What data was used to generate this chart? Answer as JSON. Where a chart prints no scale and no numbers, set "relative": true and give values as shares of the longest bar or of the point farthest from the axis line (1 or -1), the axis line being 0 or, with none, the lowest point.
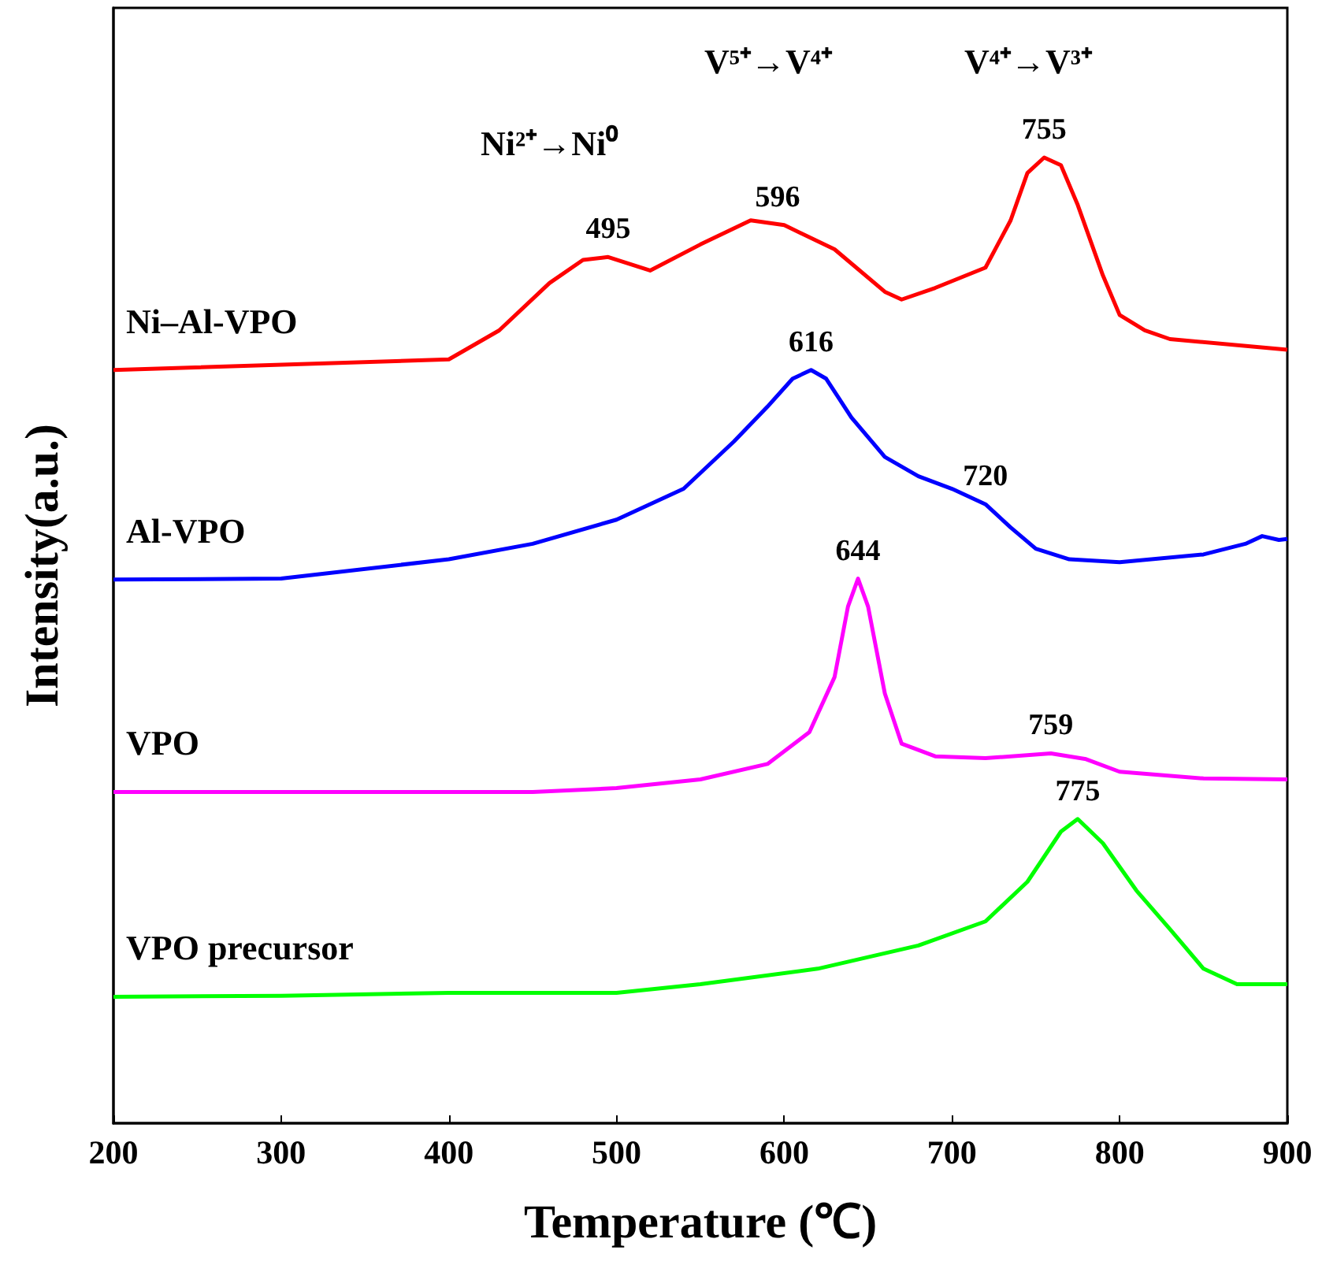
{
  "chart_data": {
    "type": "line",
    "relative": true,
    "xlabel": "Temperature (℃)",
    "ylabel": "Intensity(a.u.)",
    "xlim": [
      200,
      900
    ],
    "xticks": [
      200,
      300,
      400,
      500,
      600,
      700,
      800,
      900
    ],
    "grid": false,
    "legend": false,
    "marker": "none",
    "line_style": "solid",
    "annotations": [
      "Ni²⁺→Ni⁰",
      "V⁵⁺→V⁴⁺",
      "V⁴⁺→V³⁺",
      {
        "text": "495",
        "x": 495,
        "y": 0.897
      },
      {
        "text": "596",
        "x": 596,
        "y": 0.93
      },
      {
        "text": "755",
        "x": 755,
        "y": 1
      },
      {
        "text": "616",
        "x": 616,
        "y": 0.78
      },
      {
        "text": "720",
        "x": 720,
        "y": 0.641
      },
      {
        "text": "644",
        "x": 644,
        "y": 0.564
      },
      {
        "text": "759",
        "x": 759,
        "y": 0.383
      },
      {
        "text": "775",
        "x": 775,
        "y": 0.315
      }
    ],
    "series": [
      {
        "name": "Ni–Al-VPO",
        "color": "#ff0000",
        "x": [
          200,
          400,
          430,
          460,
          480,
          495,
          520,
          550,
          580,
          600,
          630,
          660,
          670,
          690,
          720,
          735,
          745,
          755,
          765,
          775,
          790,
          800,
          815,
          830,
          900
        ],
        "values": [
          0.78,
          0.791,
          0.821,
          0.87,
          0.894,
          0.897,
          0.883,
          0.91,
          0.935,
          0.93,
          0.905,
          0.861,
          0.853,
          0.865,
          0.886,
          0.935,
          0.984,
          1,
          0.992,
          0.951,
          0.878,
          0.837,
          0.821,
          0.812,
          0.801
        ]
      },
      {
        "name": "Al-VPO",
        "color": "#0000ff",
        "x": [
          200,
          300,
          400,
          450,
          500,
          540,
          570,
          590,
          605,
          616,
          625,
          640,
          660,
          680,
          700,
          720,
          735,
          750,
          770,
          800,
          850,
          875,
          885,
          895,
          900
        ],
        "values": [
          0.563,
          0.564,
          0.584,
          0.6,
          0.625,
          0.657,
          0.706,
          0.742,
          0.771,
          0.78,
          0.771,
          0.731,
          0.69,
          0.67,
          0.657,
          0.641,
          0.617,
          0.595,
          0.584,
          0.581,
          0.589,
          0.6,
          0.608,
          0.604,
          0.605
        ]
      },
      {
        "name": "VPO",
        "color": "#ff00ff",
        "x": [
          200,
          450,
          500,
          550,
          590,
          615,
          630,
          638,
          644,
          650,
          660,
          670,
          690,
          720,
          759,
          780,
          800,
          850,
          900
        ],
        "values": [
          0.343,
          0.343,
          0.347,
          0.356,
          0.372,
          0.405,
          0.462,
          0.535,
          0.564,
          0.535,
          0.445,
          0.393,
          0.38,
          0.378,
          0.383,
          0.377,
          0.364,
          0.357,
          0.356
        ]
      },
      {
        "name": "VPO precursor",
        "color": "#00ff00",
        "x": [
          200,
          300,
          400,
          500,
          550,
          620,
          680,
          720,
          745,
          765,
          775,
          790,
          810,
          830,
          850,
          870,
          900
        ],
        "values": [
          0.131,
          0.132,
          0.135,
          0.135,
          0.144,
          0.16,
          0.184,
          0.209,
          0.25,
          0.302,
          0.315,
          0.29,
          0.241,
          0.201,
          0.16,
          0.144,
          0.144
        ]
      }
    ]
  }
}
